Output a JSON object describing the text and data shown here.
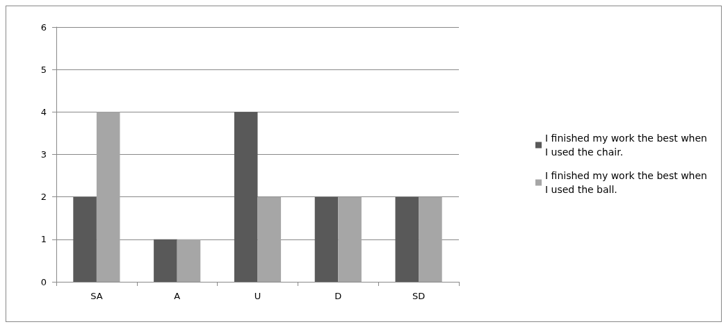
{
  "chart_data": {
    "type": "bar",
    "categories": [
      "SA",
      "A",
      "U",
      "D",
      "SD"
    ],
    "series": [
      {
        "name": "I finished my work the best when I used the chair.",
        "color": "#595959",
        "values": [
          2,
          1,
          4,
          2,
          2
        ]
      },
      {
        "name": "I finished my work the best when I used the ball.",
        "color": "#a6a6a6",
        "values": [
          4,
          1,
          2,
          2,
          2
        ]
      }
    ],
    "ylim": [
      0,
      6
    ],
    "yticks": [
      0,
      1,
      2,
      3,
      4,
      5,
      6
    ],
    "grid": "y",
    "legend": "right"
  }
}
